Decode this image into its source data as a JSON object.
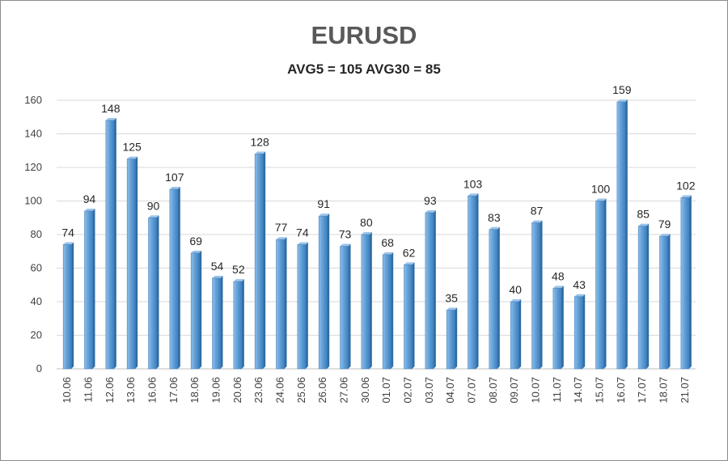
{
  "chart_data": {
    "type": "bar",
    "title": "EURUSD",
    "subtitle": "AVG5 = 105 AVG30 = 85",
    "xlabel": "",
    "ylabel": "",
    "ylim": [
      0,
      160
    ],
    "yticks": [
      0,
      20,
      40,
      60,
      80,
      100,
      120,
      140,
      160
    ],
    "grid": true,
    "legend": "none",
    "bar_color": "#5b9bd5",
    "bar_side_color": "#2e6da4",
    "categories": [
      "10.06",
      "11.06",
      "12.06",
      "13.06",
      "16.06",
      "17.06",
      "18.06",
      "19.06",
      "20.06",
      "23.06",
      "24.06",
      "25.06",
      "26.06",
      "27.06",
      "30.06",
      "01.07",
      "02.07",
      "03.07",
      "04.07",
      "07.07",
      "08.07",
      "09.07",
      "10.07",
      "11.07",
      "14.07",
      "15.07",
      "16.07",
      "17.07",
      "18.07",
      "21.07"
    ],
    "values": [
      74,
      94,
      148,
      125,
      90,
      107,
      69,
      54,
      52,
      128,
      77,
      74,
      91,
      73,
      80,
      68,
      62,
      93,
      35,
      103,
      83,
      40,
      87,
      48,
      43,
      100,
      159,
      85,
      79,
      102
    ]
  }
}
